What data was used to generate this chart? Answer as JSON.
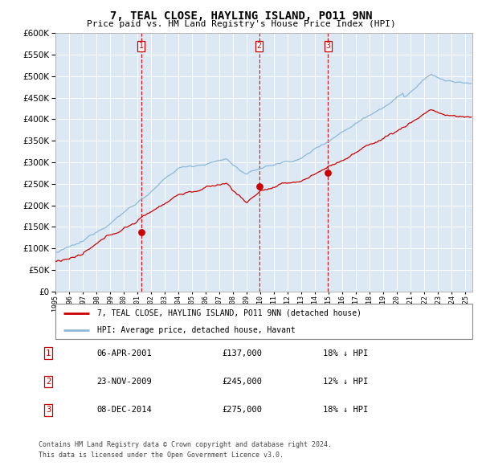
{
  "title": "7, TEAL CLOSE, HAYLING ISLAND, PO11 9NN",
  "subtitle": "Price paid vs. HM Land Registry's House Price Index (HPI)",
  "legend_red": "7, TEAL CLOSE, HAYLING ISLAND, PO11 9NN (detached house)",
  "legend_blue": "HPI: Average price, detached house, Havant",
  "sales": [
    {
      "label": "1",
      "date": "06-APR-2001",
      "price": 137000,
      "pct": "18%",
      "x_year": 2001.27
    },
    {
      "label": "2",
      "date": "23-NOV-2009",
      "price": 245000,
      "pct": "12%",
      "x_year": 2009.9
    },
    {
      "label": "3",
      "date": "08-DEC-2014",
      "price": 275000,
      "pct": "18%",
      "x_year": 2014.94
    }
  ],
  "footnote1": "Contains HM Land Registry data © Crown copyright and database right 2024.",
  "footnote2": "This data is licensed under the Open Government Licence v3.0.",
  "ylim": [
    0,
    600000
  ],
  "xlim_start": 1995.0,
  "xlim_end": 2025.5,
  "bg_color": "#dce9f5",
  "grid_color": "#ffffff",
  "red_color": "#cc0000",
  "blue_color": "#8db8d8"
}
